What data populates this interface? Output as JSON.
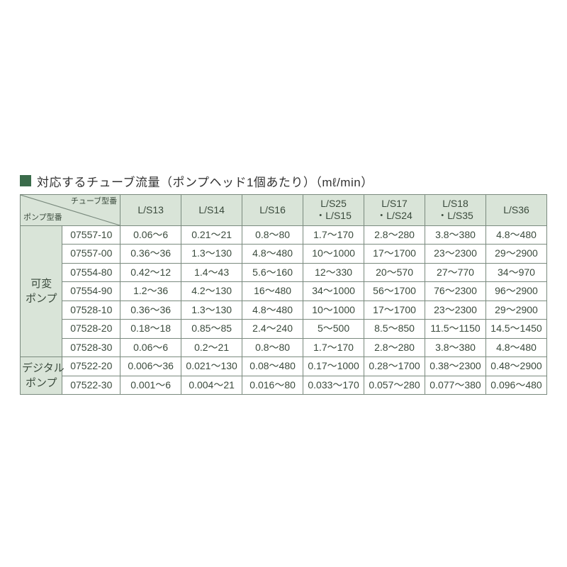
{
  "title": "対応するチューブ流量（ポンプヘッド1個あたり）（mℓ/min）",
  "cornerTube": "チューブ型番",
  "cornerPump": "ポンプ型番",
  "columns": [
    {
      "l1": "L/S13"
    },
    {
      "l1": "L/S14"
    },
    {
      "l1": "L/S16"
    },
    {
      "l1": "L/S25",
      "l2": "・L/S15"
    },
    {
      "l1": "L/S17",
      "l2": "・L/S24"
    },
    {
      "l1": "L/S18",
      "l2": "・L/S35"
    },
    {
      "l1": "L/S36"
    }
  ],
  "groups": [
    {
      "label_l1": "可変",
      "label_l2": "ポンプ",
      "rows": [
        {
          "model": "07557-10",
          "v": [
            "0.06～6",
            "0.21～21",
            "0.8～80",
            "1.7～170",
            "2.8～280",
            "3.8～380",
            "4.8～480"
          ]
        },
        {
          "model": "07557-00",
          "v": [
            "0.36～36",
            "1.3～130",
            "4.8～480",
            "10～1000",
            "17～1700",
            "23～2300",
            "29～2900"
          ]
        },
        {
          "model": "07554-80",
          "v": [
            "0.42～12",
            "1.4～43",
            "5.6～160",
            "12～330",
            "20～570",
            "27～770",
            "34～970"
          ]
        },
        {
          "model": "07554-90",
          "v": [
            "1.2～36",
            "4.2～130",
            "16～480",
            "34～1000",
            "56～1700",
            "76～2300",
            "96～2900"
          ]
        },
        {
          "model": "07528-10",
          "v": [
            "0.36～36",
            "1.3～130",
            "4.8～480",
            "10～1000",
            "17～1700",
            "23～2300",
            "29～2900"
          ]
        },
        {
          "model": "07528-20",
          "v": [
            "0.18～18",
            "0.85～85",
            "2.4～240",
            "5～500",
            "8.5～850",
            "11.5～1150",
            "14.5～1450"
          ]
        },
        {
          "model": "07528-30",
          "v": [
            "0.06～6",
            "0.2～21",
            "0.8～80",
            "1.7～170",
            "2.8～280",
            "3.8～380",
            "4.8～480"
          ]
        }
      ]
    },
    {
      "label_l1": "デジタル",
      "label_l2": "ポンプ",
      "rows": [
        {
          "model": "07522-20",
          "v": [
            "0.006～36",
            "0.021～130",
            "0.08～480",
            "0.17～1000",
            "0.28～1700",
            "0.38～2300",
            "0.48～2900"
          ]
        },
        {
          "model": "07522-30",
          "v": [
            "0.001～6",
            "0.004～21",
            "0.016～80",
            "0.033～170",
            "0.057～280",
            "0.077～380",
            "0.096～480"
          ]
        }
      ]
    }
  ],
  "colors": {
    "headerBg": "#d9e4d8",
    "border": "#7a8a7e",
    "titleSquare": "#3a6b4a",
    "text": "#3a4a3c"
  }
}
